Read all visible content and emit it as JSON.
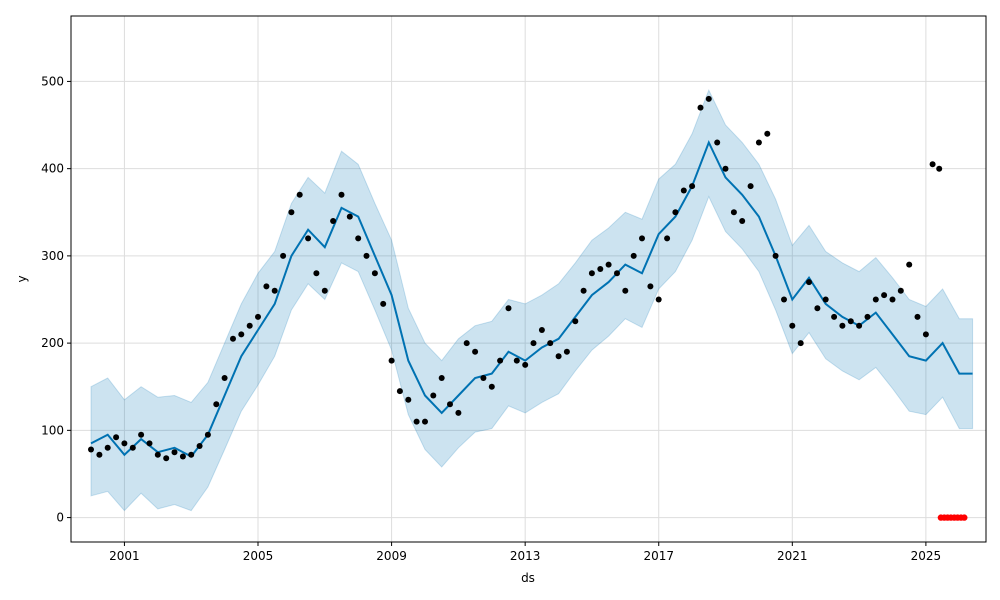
{
  "chart_data": {
    "type": "line",
    "title": "",
    "xlabel": "ds",
    "ylabel": "y",
    "xlim": [
      1999.4,
      2026.8
    ],
    "ylim": [
      -28,
      575
    ],
    "grid": true,
    "legend": "none",
    "x_ticks": [
      {
        "value": 2001,
        "label": "2001"
      },
      {
        "value": 2005,
        "label": "2005"
      },
      {
        "value": 2009,
        "label": "2009"
      },
      {
        "value": 2013,
        "label": "2013"
      },
      {
        "value": 2017,
        "label": "2017"
      },
      {
        "value": 2021,
        "label": "2021"
      },
      {
        "value": 2025,
        "label": "2025"
      }
    ],
    "y_ticks": [
      {
        "value": 0,
        "label": "0"
      },
      {
        "value": 100,
        "label": "100"
      },
      {
        "value": 200,
        "label": "200"
      },
      {
        "value": 300,
        "label": "300"
      },
      {
        "value": 400,
        "label": "400"
      },
      {
        "value": 500,
        "label": "500"
      }
    ],
    "colors": {
      "forecast_line": "#0072B2",
      "interval_fill": "#0072B2",
      "observed_points": "#000000",
      "future_points": "#ff0000",
      "grid": "#dddddd"
    },
    "series": [
      {
        "role": "forecast",
        "x": [
          2000.0,
          2000.5,
          2001.0,
          2001.5,
          2002.0,
          2002.5,
          2003.0,
          2003.5,
          2004.0,
          2004.5,
          2005.0,
          2005.5,
          2006.0,
          2006.5,
          2007.0,
          2007.5,
          2008.0,
          2008.5,
          2009.0,
          2009.5,
          2010.0,
          2010.5,
          2011.0,
          2011.5,
          2012.0,
          2012.5,
          2013.0,
          2013.5,
          2014.0,
          2014.5,
          2015.0,
          2015.5,
          2016.0,
          2016.5,
          2017.0,
          2017.5,
          2018.0,
          2018.5,
          2019.0,
          2019.5,
          2020.0,
          2020.5,
          2021.0,
          2021.5,
          2022.0,
          2022.5,
          2023.0,
          2023.5,
          2024.0,
          2024.5,
          2025.0,
          2025.5,
          2026.0,
          2026.4
        ],
        "values": [
          85,
          95,
          72,
          90,
          75,
          80,
          70,
          95,
          140,
          185,
          215,
          245,
          300,
          330,
          310,
          355,
          345,
          300,
          255,
          180,
          140,
          120,
          140,
          160,
          165,
          190,
          180,
          195,
          205,
          230,
          255,
          270,
          290,
          280,
          325,
          345,
          380,
          430,
          390,
          370,
          345,
          300,
          250,
          275,
          245,
          230,
          220,
          235,
          210,
          185,
          180,
          200,
          165,
          165
        ]
      },
      {
        "role": "interval_upper",
        "x": [
          2000.0,
          2000.5,
          2001.0,
          2001.5,
          2002.0,
          2002.5,
          2003.0,
          2003.5,
          2004.0,
          2004.5,
          2005.0,
          2005.5,
          2006.0,
          2006.5,
          2007.0,
          2007.5,
          2008.0,
          2008.5,
          2009.0,
          2009.5,
          2010.0,
          2010.5,
          2011.0,
          2011.5,
          2012.0,
          2012.5,
          2013.0,
          2013.5,
          2014.0,
          2014.5,
          2015.0,
          2015.5,
          2016.0,
          2016.5,
          2017.0,
          2017.5,
          2018.0,
          2018.5,
          2019.0,
          2019.5,
          2020.0,
          2020.5,
          2021.0,
          2021.5,
          2022.0,
          2022.5,
          2023.0,
          2023.5,
          2024.0,
          2024.5,
          2025.0,
          2025.5,
          2026.0,
          2026.4
        ],
        "values": [
          150,
          160,
          135,
          150,
          138,
          140,
          132,
          155,
          200,
          245,
          280,
          305,
          360,
          390,
          372,
          420,
          405,
          360,
          318,
          240,
          200,
          180,
          205,
          220,
          225,
          250,
          245,
          255,
          268,
          292,
          318,
          332,
          350,
          342,
          388,
          405,
          440,
          490,
          450,
          430,
          405,
          365,
          312,
          335,
          305,
          292,
          282,
          298,
          275,
          250,
          242,
          262,
          228,
          228
        ]
      },
      {
        "role": "interval_lower",
        "x": [
          2000.0,
          2000.5,
          2001.0,
          2001.5,
          2002.0,
          2002.5,
          2003.0,
          2003.5,
          2004.0,
          2004.5,
          2005.0,
          2005.5,
          2006.0,
          2006.5,
          2007.0,
          2007.5,
          2008.0,
          2008.5,
          2009.0,
          2009.5,
          2010.0,
          2010.5,
          2011.0,
          2011.5,
          2012.0,
          2012.5,
          2013.0,
          2013.5,
          2014.0,
          2014.5,
          2015.0,
          2015.5,
          2016.0,
          2016.5,
          2017.0,
          2017.5,
          2018.0,
          2018.5,
          2019.0,
          2019.5,
          2020.0,
          2020.5,
          2021.0,
          2021.5,
          2022.0,
          2022.5,
          2023.0,
          2023.5,
          2024.0,
          2024.5,
          2025.0,
          2025.5,
          2026.0,
          2026.4
        ],
        "values": [
          25,
          30,
          8,
          28,
          10,
          15,
          8,
          35,
          78,
          122,
          152,
          185,
          238,
          268,
          250,
          292,
          282,
          238,
          192,
          118,
          78,
          58,
          80,
          98,
          102,
          128,
          120,
          132,
          142,
          168,
          192,
          208,
          228,
          218,
          262,
          282,
          318,
          368,
          328,
          308,
          282,
          238,
          188,
          212,
          182,
          168,
          158,
          172,
          148,
          122,
          118,
          138,
          102,
          102
        ]
      },
      {
        "role": "observed",
        "x": [
          2000.0,
          2000.25,
          2000.5,
          2000.75,
          2001.0,
          2001.25,
          2001.5,
          2001.75,
          2002.0,
          2002.25,
          2002.5,
          2002.75,
          2003.0,
          2003.25,
          2003.5,
          2003.75,
          2004.0,
          2004.25,
          2004.5,
          2004.75,
          2005.0,
          2005.25,
          2005.5,
          2005.75,
          2006.0,
          2006.25,
          2006.5,
          2006.75,
          2007.0,
          2007.25,
          2007.5,
          2007.75,
          2008.0,
          2008.25,
          2008.5,
          2008.75,
          2009.0,
          2009.25,
          2009.5,
          2009.75,
          2010.0,
          2010.25,
          2010.5,
          2010.75,
          2011.0,
          2011.25,
          2011.5,
          2011.75,
          2012.0,
          2012.25,
          2012.5,
          2012.75,
          2013.0,
          2013.25,
          2013.5,
          2013.75,
          2014.0,
          2014.25,
          2014.5,
          2014.75,
          2015.0,
          2015.25,
          2015.5,
          2015.75,
          2016.0,
          2016.25,
          2016.5,
          2016.75,
          2017.0,
          2017.25,
          2017.5,
          2017.75,
          2018.0,
          2018.25,
          2018.5,
          2018.75,
          2019.0,
          2019.25,
          2019.5,
          2019.75,
          2020.0,
          2020.25,
          2020.5,
          2020.75,
          2021.0,
          2021.25,
          2021.5,
          2021.75,
          2022.0,
          2022.25,
          2022.5,
          2022.75,
          2023.0,
          2023.25,
          2023.5,
          2023.75,
          2024.0,
          2024.25,
          2024.5,
          2024.75,
          2025.0,
          2025.2,
          2025.4
        ],
        "values": [
          78,
          72,
          80,
          92,
          85,
          80,
          95,
          85,
          72,
          68,
          75,
          70,
          72,
          82,
          95,
          130,
          160,
          205,
          210,
          220,
          230,
          265,
          260,
          300,
          350,
          370,
          320,
          280,
          260,
          340,
          370,
          345,
          320,
          300,
          280,
          245,
          180,
          145,
          135,
          110,
          110,
          140,
          160,
          130,
          120,
          200,
          190,
          160,
          150,
          180,
          240,
          180,
          175,
          200,
          215,
          200,
          185,
          190,
          225,
          260,
          280,
          285,
          290,
          280,
          260,
          300,
          320,
          265,
          250,
          320,
          350,
          375,
          380,
          470,
          480,
          430,
          400,
          350,
          340,
          380,
          430,
          440,
          300,
          250,
          220,
          200,
          270,
          240,
          250,
          230,
          220,
          225,
          220,
          230,
          250,
          255,
          250,
          260,
          290,
          230,
          210,
          405,
          400
        ]
      },
      {
        "role": "future",
        "x": [
          2025.45,
          2025.55,
          2025.65,
          2025.75,
          2025.85,
          2025.95,
          2026.05,
          2026.15
        ],
        "values": [
          0,
          0,
          0,
          0,
          0,
          0,
          0,
          0
        ]
      }
    ]
  }
}
